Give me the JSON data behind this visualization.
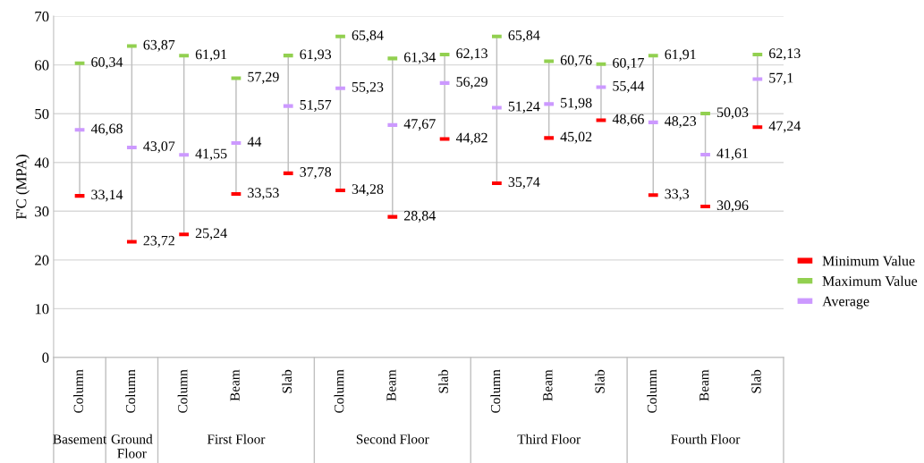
{
  "chart_data": {
    "type": "scatter",
    "ylabel": "F'C (MPA)",
    "categories": [
      "Column",
      "Column",
      "Column",
      "Beam",
      "Slab",
      "Column",
      "Beam",
      "Slab",
      "Column",
      "Beam",
      "Slab",
      "Column",
      "Beam",
      "Slab"
    ],
    "annotations": [
      "Basement",
      "Ground\nFloor",
      "First Floor",
      "Second Floor",
      "Third Floor",
      "Fourth Floor"
    ],
    "series": [
      {
        "type": "bar",
        "color": "#bfbfbf",
        "base": [
          33.14,
          23.72,
          25.24,
          33.53,
          37.78,
          34.28,
          28.84,
          44.82,
          35.74,
          45.02,
          48.66,
          33.3,
          30.96,
          47.24
        ],
        "values": [
          27.2,
          40.15,
          36.67,
          23.76,
          24.15,
          31.56,
          32.5,
          17.31,
          30.1,
          15.74,
          11.51,
          28.61,
          19.07,
          14.89
        ]
      },
      {
        "name": "Minimum Value",
        "color": "#ff0000",
        "values": [
          33.14,
          23.72,
          25.24,
          33.53,
          37.78,
          34.28,
          28.84,
          44.82,
          35.74,
          45.02,
          48.66,
          33.3,
          30.96,
          47.24
        ],
        "value_labels": [
          "33,14",
          "23,72",
          "25,24",
          "33,53",
          "37,78",
          "34,28",
          "28,84",
          "44,82",
          "35,74",
          "45,02",
          "48,66",
          "33,3",
          "30,96",
          "47,24"
        ]
      },
      {
        "name": "Maximum Value",
        "color": "#92d050",
        "values": [
          60.34,
          63.87,
          61.91,
          57.29,
          61.93,
          65.84,
          61.34,
          62.13,
          65.84,
          60.76,
          60.17,
          61.91,
          50.03,
          62.13
        ],
        "value_labels": [
          "60,34",
          "63,87",
          "61,91",
          "57,29",
          "61,93",
          "65,84",
          "61,34",
          "62,13",
          "65,84",
          "60,76",
          "60,17",
          "61,91",
          "50,03",
          "62,13"
        ]
      },
      {
        "name": "Average",
        "color": "#cc99ff",
        "values": [
          46.68,
          43.07,
          41.55,
          44,
          51.57,
          55.23,
          47.67,
          56.29,
          51.24,
          51.98,
          55.44,
          48.23,
          41.61,
          57.1
        ],
        "value_labels": [
          "46,68",
          "43,07",
          "41,55",
          "44",
          "51,57",
          "55,23",
          "47,67",
          "56,29",
          "51,24",
          "51,98",
          "55,44",
          "48,23",
          "41,61",
          "57,1"
        ]
      }
    ],
    "ylim": [
      0,
      70
    ],
    "yticks": [
      0,
      10,
      20,
      30,
      40,
      50,
      60,
      70
    ],
    "grid": "y",
    "legend": "right"
  }
}
